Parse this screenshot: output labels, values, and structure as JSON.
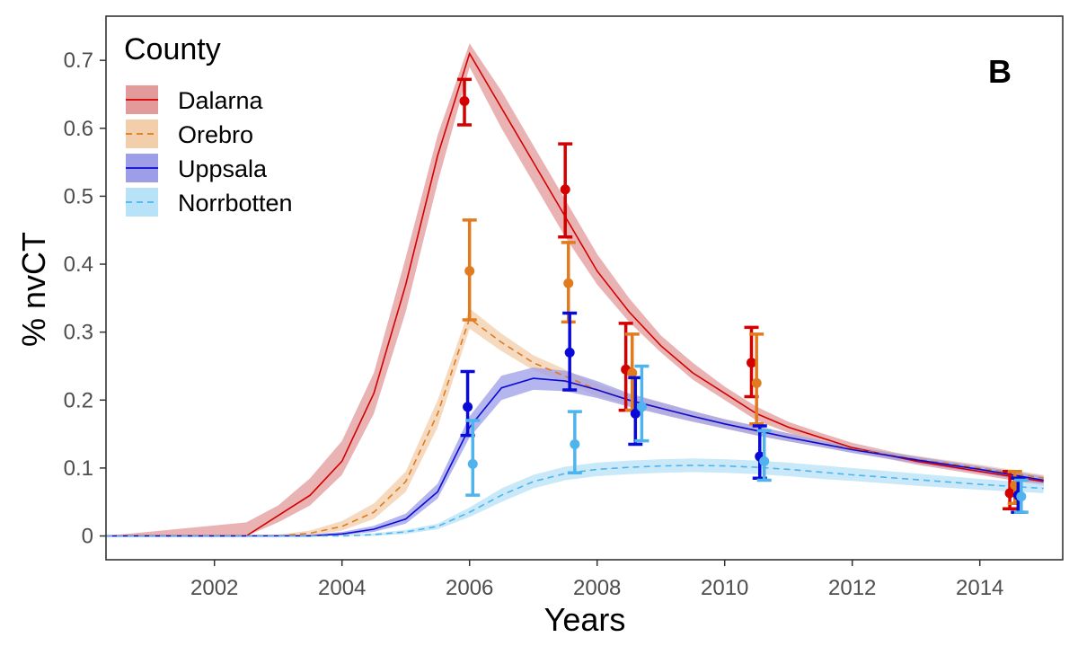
{
  "chart_data": {
    "type": "line",
    "title": "",
    "panel_label": "B",
    "xlabel": "Years",
    "ylabel": "% nvCT",
    "xlim": [
      2000.3,
      2015.3
    ],
    "ylim": [
      -0.035,
      0.765
    ],
    "x_ticks": [
      2002,
      2004,
      2006,
      2008,
      2010,
      2012,
      2014
    ],
    "y_ticks": [
      0,
      0.1,
      0.2,
      0.3,
      0.4,
      0.5,
      0.6,
      0.7
    ],
    "x_tick_labels": [
      "2002",
      "2004",
      "2006",
      "2008",
      "2010",
      "2012",
      "2014"
    ],
    "y_tick_labels": [
      "0",
      "0.1",
      "0.2",
      "0.3",
      "0.4",
      "0.5",
      "0.6",
      "0.7"
    ],
    "grid": false,
    "legend": {
      "title": "County",
      "position": "top-left"
    },
    "series": [
      {
        "name": "Dalarna",
        "color": "#d40000",
        "band_color": "#e39a9a",
        "dash": "solid",
        "line": {
          "x": [
            2000.3,
            2002.5,
            2003.0,
            2003.5,
            2004.0,
            2004.5,
            2005.0,
            2005.5,
            2006.0,
            2006.5,
            2007.0,
            2007.5,
            2008.0,
            2008.5,
            2009.0,
            2009.5,
            2010.0,
            2010.5,
            2011.0,
            2011.5,
            2012.0,
            2013.0,
            2014.0,
            2015.0
          ],
          "y": [
            0,
            0,
            0.03,
            0.06,
            0.11,
            0.21,
            0.37,
            0.56,
            0.71,
            0.63,
            0.55,
            0.47,
            0.39,
            0.33,
            0.28,
            0.24,
            0.21,
            0.18,
            0.16,
            0.145,
            0.13,
            0.11,
            0.095,
            0.08
          ]
        },
        "band_lower": [
          0,
          0,
          0.02,
          0.045,
          0.09,
          0.18,
          0.33,
          0.52,
          0.69,
          0.6,
          0.52,
          0.44,
          0.37,
          0.315,
          0.27,
          0.23,
          0.2,
          0.17,
          0.152,
          0.138,
          0.124,
          0.105,
          0.09,
          0.074
        ],
        "band_upper": [
          0,
          0.02,
          0.045,
          0.085,
          0.14,
          0.24,
          0.41,
          0.59,
          0.725,
          0.655,
          0.575,
          0.495,
          0.415,
          0.35,
          0.295,
          0.255,
          0.22,
          0.19,
          0.168,
          0.152,
          0.137,
          0.116,
          0.1,
          0.085
        ],
        "points": [
          {
            "x": 2005.92,
            "y": 0.64,
            "lo": 0.605,
            "hi": 0.672
          },
          {
            "x": 2007.5,
            "y": 0.51,
            "lo": 0.44,
            "hi": 0.577
          },
          {
            "x": 2008.45,
            "y": 0.245,
            "lo": 0.185,
            "hi": 0.313
          },
          {
            "x": 2010.42,
            "y": 0.255,
            "lo": 0.205,
            "hi": 0.307
          },
          {
            "x": 2014.47,
            "y": 0.063,
            "lo": 0.04,
            "hi": 0.095
          }
        ]
      },
      {
        "name": "Orebro",
        "color": "#e07b20",
        "band_color": "#f3ceaa",
        "dash": "dashed",
        "line": {
          "x": [
            2000.3,
            2003.0,
            2003.5,
            2004.0,
            2004.5,
            2005.0,
            2005.5,
            2006.0,
            2006.5,
            2007.0,
            2007.5,
            2008.0,
            2008.5,
            2009.0,
            2009.5,
            2010.0,
            2010.5,
            2011.0,
            2011.5,
            2012.0,
            2013.0,
            2014.0,
            2015.0
          ],
          "y": [
            0,
            0,
            0.004,
            0.014,
            0.035,
            0.08,
            0.18,
            0.32,
            0.285,
            0.255,
            0.235,
            0.215,
            0.2,
            0.188,
            0.176,
            0.165,
            0.155,
            0.145,
            0.136,
            0.128,
            0.113,
            0.1,
            0.085
          ]
        },
        "band_lower": [
          0,
          0,
          0.001,
          0.008,
          0.025,
          0.065,
          0.16,
          0.305,
          0.272,
          0.244,
          0.225,
          0.206,
          0.192,
          0.18,
          0.169,
          0.158,
          0.148,
          0.139,
          0.131,
          0.123,
          0.108,
          0.095,
          0.08
        ],
        "band_upper": [
          0,
          0.002,
          0.008,
          0.022,
          0.048,
          0.095,
          0.2,
          0.335,
          0.298,
          0.266,
          0.245,
          0.224,
          0.208,
          0.196,
          0.183,
          0.172,
          0.161,
          0.151,
          0.142,
          0.133,
          0.118,
          0.105,
          0.09
        ],
        "points": [
          {
            "x": 2006.0,
            "y": 0.39,
            "lo": 0.318,
            "hi": 0.465
          },
          {
            "x": 2007.55,
            "y": 0.372,
            "lo": 0.315,
            "hi": 0.432
          },
          {
            "x": 2008.55,
            "y": 0.24,
            "lo": 0.185,
            "hi": 0.297
          },
          {
            "x": 2010.5,
            "y": 0.225,
            "lo": 0.165,
            "hi": 0.297
          },
          {
            "x": 2014.55,
            "y": 0.075,
            "lo": 0.048,
            "hi": 0.095
          }
        ]
      },
      {
        "name": "Uppsala",
        "color": "#0a0ad6",
        "band_color": "#9d9de8",
        "dash": "solid",
        "line": {
          "x": [
            2000.3,
            2003.5,
            2004.0,
            2004.5,
            2005.0,
            2005.5,
            2006.0,
            2006.5,
            2007.0,
            2007.5,
            2008.0,
            2008.5,
            2009.0,
            2009.5,
            2010.0,
            2010.5,
            2011.0,
            2011.5,
            2012.0,
            2013.0,
            2014.0,
            2015.0
          ],
          "y": [
            0,
            0,
            0.003,
            0.01,
            0.025,
            0.065,
            0.16,
            0.218,
            0.232,
            0.228,
            0.215,
            0.2,
            0.188,
            0.176,
            0.165,
            0.155,
            0.145,
            0.136,
            0.127,
            0.112,
            0.098,
            0.082
          ]
        },
        "band_lower": [
          0,
          0,
          0.001,
          0.006,
          0.018,
          0.055,
          0.145,
          0.2,
          0.215,
          0.213,
          0.203,
          0.19,
          0.179,
          0.168,
          0.158,
          0.148,
          0.139,
          0.131,
          0.122,
          0.107,
          0.093,
          0.076
        ],
        "band_upper": [
          0,
          0.002,
          0.006,
          0.015,
          0.033,
          0.077,
          0.176,
          0.236,
          0.248,
          0.243,
          0.228,
          0.21,
          0.197,
          0.184,
          0.172,
          0.162,
          0.151,
          0.141,
          0.132,
          0.117,
          0.103,
          0.088
        ],
        "points": [
          {
            "x": 2005.97,
            "y": 0.19,
            "lo": 0.148,
            "hi": 0.242
          },
          {
            "x": 2007.57,
            "y": 0.27,
            "lo": 0.215,
            "hi": 0.328
          },
          {
            "x": 2008.6,
            "y": 0.18,
            "lo": 0.135,
            "hi": 0.233
          },
          {
            "x": 2010.55,
            "y": 0.117,
            "lo": 0.085,
            "hi": 0.162
          },
          {
            "x": 2014.6,
            "y": 0.06,
            "lo": 0.035,
            "hi": 0.085
          }
        ]
      },
      {
        "name": "Norrbotten",
        "color": "#4fb4ee",
        "band_color": "#b7e2f7",
        "dash": "dashed",
        "line": {
          "x": [
            2000.3,
            2004.0,
            2004.5,
            2005.0,
            2005.5,
            2006.0,
            2006.5,
            2007.0,
            2007.5,
            2008.0,
            2008.5,
            2009.0,
            2009.5,
            2010.0,
            2010.5,
            2011.0,
            2011.5,
            2012.0,
            2013.0,
            2014.0,
            2015.0
          ],
          "y": [
            0,
            0,
            0.002,
            0.006,
            0.014,
            0.035,
            0.06,
            0.08,
            0.092,
            0.098,
            0.101,
            0.103,
            0.104,
            0.103,
            0.101,
            0.098,
            0.094,
            0.09,
            0.083,
            0.076,
            0.07
          ]
        },
        "band_lower": [
          0,
          0,
          0.0,
          0.003,
          0.01,
          0.028,
          0.05,
          0.07,
          0.082,
          0.088,
          0.091,
          0.093,
          0.094,
          0.093,
          0.091,
          0.088,
          0.084,
          0.081,
          0.074,
          0.068,
          0.063
        ],
        "band_upper": [
          0,
          0.001,
          0.004,
          0.009,
          0.018,
          0.042,
          0.07,
          0.09,
          0.102,
          0.108,
          0.111,
          0.113,
          0.114,
          0.113,
          0.111,
          0.108,
          0.104,
          0.1,
          0.092,
          0.084,
          0.077
        ],
        "points": [
          {
            "x": 2006.05,
            "y": 0.106,
            "lo": 0.06,
            "hi": 0.17
          },
          {
            "x": 2007.65,
            "y": 0.135,
            "lo": 0.093,
            "hi": 0.183
          },
          {
            "x": 2008.7,
            "y": 0.19,
            "lo": 0.14,
            "hi": 0.25
          },
          {
            "x": 2010.62,
            "y": 0.11,
            "lo": 0.082,
            "hi": 0.155
          },
          {
            "x": 2014.65,
            "y": 0.058,
            "lo": 0.035,
            "hi": 0.082
          }
        ]
      }
    ]
  }
}
